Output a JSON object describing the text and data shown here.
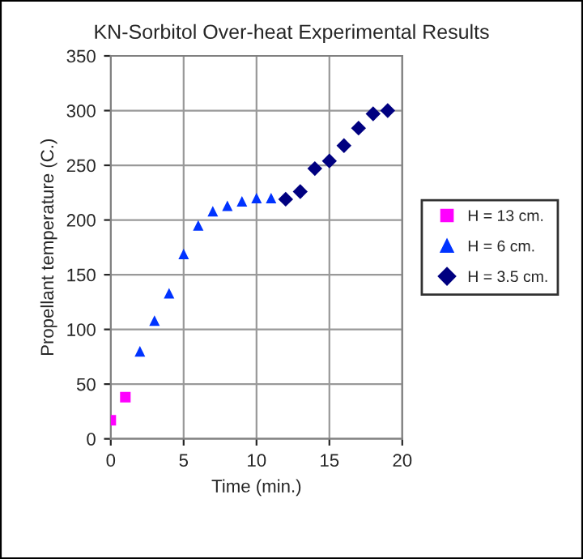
{
  "chart_data": {
    "type": "scatter",
    "title": "KN-Sorbitol Over-heat Experimental Results",
    "xlabel": "Time (min.)",
    "ylabel": "Propellant temperature (C.)",
    "series": [
      {
        "name": "H = 13 cm.",
        "color": "#ff00ff",
        "marker": "square",
        "x": [
          0,
          1
        ],
        "values": [
          17,
          38
        ]
      },
      {
        "name": "H = 6 cm.",
        "color": "#0033ff",
        "marker": "triangle",
        "x": [
          2,
          3,
          4,
          5,
          6,
          7,
          8,
          9,
          10,
          11
        ],
        "values": [
          80,
          108,
          133,
          169,
          195,
          208,
          213,
          217,
          220,
          220
        ]
      },
      {
        "name": "H = 3.5 cm.",
        "color": "#000080",
        "marker": "diamond",
        "x": [
          12,
          13,
          14,
          15,
          16,
          17,
          18,
          19
        ],
        "values": [
          219,
          226,
          247,
          254,
          268,
          284,
          297,
          300
        ]
      }
    ],
    "xlim": [
      0,
      20
    ],
    "xticks": [
      0,
      5,
      10,
      15,
      20
    ],
    "ylim": [
      0,
      350
    ],
    "yticks": [
      0,
      50,
      100,
      150,
      200,
      250,
      300,
      350
    ],
    "grid": true,
    "legend": "right"
  }
}
